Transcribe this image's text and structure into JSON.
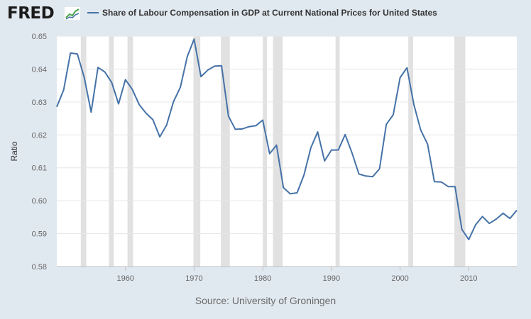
{
  "header": {
    "logo_text": "FRED",
    "legend_label": "Share of Labour Compensation in GDP at Current National Prices for United States"
  },
  "footer": {
    "source": "Source: University of Groningen"
  },
  "colors": {
    "line": "#4572a7",
    "recession": "#e1e1e1",
    "plot_bg": "#ffffff",
    "page_bg": "#e1e9f0",
    "grid": "#e6e6e6"
  },
  "chart_data": {
    "type": "line",
    "title": "Share of Labour Compensation in GDP at Current National Prices for United States",
    "xlabel": "",
    "ylabel": "Ratio",
    "xlim": [
      1950,
      2017
    ],
    "ylim": [
      0.58,
      0.65
    ],
    "x_ticks": [
      1960,
      1970,
      1980,
      1990,
      2000,
      2010
    ],
    "y_ticks": [
      "0.58",
      "0.59",
      "0.60",
      "0.61",
      "0.62",
      "0.63",
      "0.64",
      "0.65"
    ],
    "grid": true,
    "legend_position": "top",
    "recessions": [
      [
        1953.5,
        1954.3
      ],
      [
        1957.6,
        1958.3
      ],
      [
        1960.3,
        1961.1
      ],
      [
        1969.9,
        1970.9
      ],
      [
        1973.9,
        1975.2
      ],
      [
        1980.0,
        1980.6
      ],
      [
        1981.5,
        1982.9
      ],
      [
        1990.6,
        1991.2
      ],
      [
        2001.2,
        2001.9
      ],
      [
        2007.9,
        2009.5
      ]
    ],
    "series": [
      {
        "name": "Share of Labour Compensation in GDP at Current National Prices for United States",
        "x": [
          1950,
          1951,
          1952,
          1953,
          1954,
          1955,
          1956,
          1957,
          1958,
          1959,
          1960,
          1961,
          1962,
          1963,
          1964,
          1965,
          1966,
          1967,
          1968,
          1969,
          1970,
          1971,
          1972,
          1973,
          1974,
          1975,
          1976,
          1977,
          1978,
          1979,
          1980,
          1981,
          1982,
          1983,
          1984,
          1985,
          1986,
          1987,
          1988,
          1989,
          1990,
          1991,
          1992,
          1993,
          1994,
          1995,
          1996,
          1997,
          1998,
          1999,
          2000,
          2001,
          2002,
          2003,
          2004,
          2005,
          2006,
          2007,
          2008,
          2009,
          2010,
          2011,
          2012,
          2013,
          2014,
          2015,
          2016,
          2017
        ],
        "values": [
          0.6285,
          0.6337,
          0.6449,
          0.6446,
          0.6374,
          0.6269,
          0.6405,
          0.6391,
          0.6359,
          0.6294,
          0.6368,
          0.6338,
          0.6292,
          0.6266,
          0.6246,
          0.6194,
          0.623,
          0.6301,
          0.6345,
          0.6438,
          0.6491,
          0.6377,
          0.6397,
          0.6409,
          0.641,
          0.6257,
          0.6217,
          0.6218,
          0.6225,
          0.6228,
          0.6245,
          0.6143,
          0.6169,
          0.604,
          0.6021,
          0.6024,
          0.6078,
          0.6161,
          0.6209,
          0.6121,
          0.6154,
          0.6154,
          0.6201,
          0.6145,
          0.6081,
          0.6075,
          0.6073,
          0.6097,
          0.6232,
          0.6261,
          0.6374,
          0.6404,
          0.6293,
          0.6215,
          0.6172,
          0.6058,
          0.6057,
          0.6043,
          0.6043,
          0.5913,
          0.5882,
          0.5927,
          0.5952,
          0.5931,
          0.5944,
          0.5962,
          0.5946,
          0.5971
        ]
      }
    ]
  }
}
